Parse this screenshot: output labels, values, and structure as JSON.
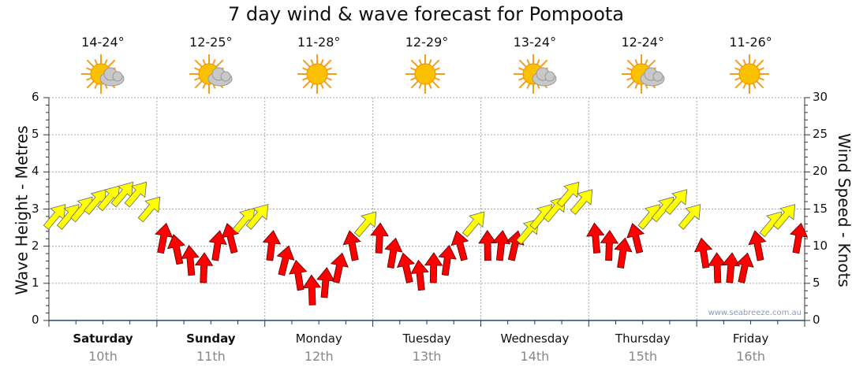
{
  "title": "7 day wind & wave forecast for Pompoota",
  "watermark": "www.seabreeze.com.au",
  "days": [
    {
      "name": "Saturday",
      "date": "10th",
      "temp": "14-24°",
      "icon": "partly-cloudy",
      "bold": true
    },
    {
      "name": "Sunday",
      "date": "11th",
      "temp": "12-25°",
      "icon": "partly-cloudy",
      "bold": true
    },
    {
      "name": "Monday",
      "date": "12th",
      "temp": "11-28°",
      "icon": "sunny",
      "bold": false
    },
    {
      "name": "Tuesday",
      "date": "13th",
      "temp": "12-29°",
      "icon": "sunny",
      "bold": false
    },
    {
      "name": "Wednesday",
      "date": "14th",
      "temp": "13-24°",
      "icon": "partly-cloudy",
      "bold": false
    },
    {
      "name": "Thursday",
      "date": "15th",
      "temp": "12-24°",
      "icon": "partly-cloudy",
      "bold": false
    },
    {
      "name": "Friday",
      "date": "16th",
      "temp": "11-26°",
      "icon": "sunny",
      "bold": false
    }
  ],
  "chart_data": {
    "type": "scatter",
    "title": "7 day wind & wave forecast for Pompoota",
    "ylabel": "Wave Height - Metres",
    "y2label": "Wind Speed - Knots",
    "ylim": [
      0,
      6
    ],
    "y2lim": [
      0,
      30
    ],
    "yticks": [
      "0",
      "1",
      "2",
      "3",
      "4",
      "5",
      "6"
    ],
    "y2ticks": [
      "0",
      "5",
      "10",
      "15",
      "20",
      "25",
      "30"
    ],
    "grid": true,
    "colors": {
      "onshore": "#ffff00",
      "offshore": "#ff0000"
    },
    "wind_knots_3hourly": [
      14,
      14,
      15,
      16,
      16.5,
      17,
      17,
      15,
      11,
      9.5,
      8,
      7,
      10,
      11,
      13.5,
      14,
      10,
      8,
      6,
      4,
      5,
      7,
      10,
      13,
      11,
      9,
      7,
      6,
      7,
      8,
      10,
      13,
      10,
      10,
      10,
      12,
      14,
      15,
      17,
      16,
      11,
      10,
      9,
      11,
      14,
      15,
      16,
      14,
      9,
      7,
      7,
      7,
      10,
      13,
      14,
      11
    ],
    "wind_color": [
      "y",
      "y",
      "y",
      "y",
      "y",
      "y",
      "y",
      "y",
      "r",
      "r",
      "r",
      "r",
      "r",
      "r",
      "y",
      "y",
      "r",
      "r",
      "r",
      "r",
      "r",
      "r",
      "r",
      "y",
      "r",
      "r",
      "r",
      "r",
      "r",
      "r",
      "r",
      "y",
      "r",
      "r",
      "r",
      "y",
      "y",
      "y",
      "y",
      "y",
      "r",
      "r",
      "r",
      "r",
      "y",
      "y",
      "y",
      "y",
      "r",
      "r",
      "r",
      "r",
      "r",
      "y",
      "y",
      "r"
    ]
  }
}
